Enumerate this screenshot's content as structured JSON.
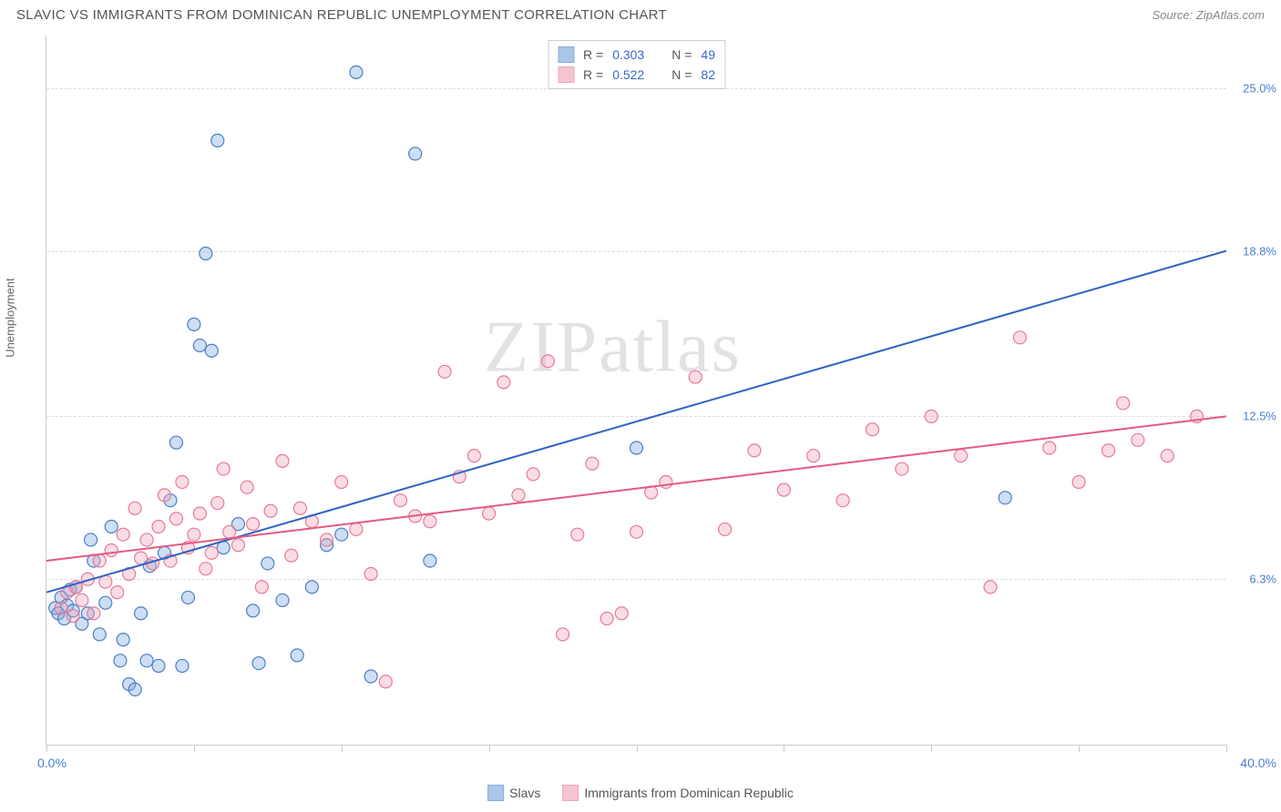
{
  "title": "SLAVIC VS IMMIGRANTS FROM DOMINICAN REPUBLIC UNEMPLOYMENT CORRELATION CHART",
  "source": "Source: ZipAtlas.com",
  "watermark": "ZIPatlas",
  "chart": {
    "type": "scatter",
    "ylabel": "Unemployment",
    "xlim": [
      0,
      40
    ],
    "ylim": [
      0,
      27
    ],
    "grid_y_values": [
      6.3,
      12.5,
      18.8,
      25.0
    ],
    "ytick_labels": [
      "6.3%",
      "12.5%",
      "18.8%",
      "25.0%"
    ],
    "xtick_values": [
      0,
      5,
      10,
      15,
      20,
      25,
      30,
      35,
      40
    ],
    "xaxis_min_label": "0.0%",
    "xaxis_max_label": "40.0%",
    "background_color": "#ffffff",
    "grid_color": "#dddddd",
    "axis_color": "#cccccc",
    "marker_radius": 7,
    "series": [
      {
        "name_key": "slavs",
        "label": "Slavs",
        "color": "#7fa9e0",
        "stroke": "#4b7fc7",
        "line_color": "#2e62c4",
        "R": "0.303",
        "N": "49",
        "regression": {
          "x1": 0,
          "y1": 5.8,
          "x2": 40,
          "y2": 18.8
        },
        "points": [
          [
            0.3,
            5.2
          ],
          [
            0.4,
            5.0
          ],
          [
            0.5,
            5.6
          ],
          [
            0.6,
            4.8
          ],
          [
            0.7,
            5.3
          ],
          [
            0.8,
            5.9
          ],
          [
            0.9,
            5.1
          ],
          [
            1.0,
            6.0
          ],
          [
            1.2,
            4.6
          ],
          [
            1.4,
            5.0
          ],
          [
            1.5,
            7.8
          ],
          [
            1.6,
            7.0
          ],
          [
            1.8,
            4.2
          ],
          [
            2.0,
            5.4
          ],
          [
            2.2,
            8.3
          ],
          [
            2.5,
            3.2
          ],
          [
            2.6,
            4.0
          ],
          [
            2.8,
            2.3
          ],
          [
            3.0,
            2.1
          ],
          [
            3.2,
            5.0
          ],
          [
            3.4,
            3.2
          ],
          [
            3.5,
            6.8
          ],
          [
            3.8,
            3.0
          ],
          [
            4.0,
            7.3
          ],
          [
            4.2,
            9.3
          ],
          [
            4.4,
            11.5
          ],
          [
            4.6,
            3.0
          ],
          [
            4.8,
            5.6
          ],
          [
            5.0,
            16.0
          ],
          [
            5.2,
            15.2
          ],
          [
            5.4,
            18.7
          ],
          [
            5.6,
            15.0
          ],
          [
            5.8,
            23.0
          ],
          [
            6.0,
            7.5
          ],
          [
            6.5,
            8.4
          ],
          [
            7.0,
            5.1
          ],
          [
            7.2,
            3.1
          ],
          [
            7.5,
            6.9
          ],
          [
            8.0,
            5.5
          ],
          [
            8.5,
            3.4
          ],
          [
            9.0,
            6.0
          ],
          [
            9.5,
            7.6
          ],
          [
            10.0,
            8.0
          ],
          [
            10.5,
            25.6
          ],
          [
            11.0,
            2.6
          ],
          [
            12.5,
            22.5
          ],
          [
            13.0,
            7.0
          ],
          [
            20.0,
            11.3
          ],
          [
            32.5,
            9.4
          ]
        ]
      },
      {
        "name_key": "dominican",
        "label": "Immigrants from Dominican Republic",
        "color": "#f2a6b8",
        "stroke": "#e87a97",
        "line_color": "#e25a82",
        "R": "0.522",
        "N": "82",
        "regression": {
          "x1": 0,
          "y1": 7.0,
          "x2": 40,
          "y2": 12.5
        },
        "points": [
          [
            0.5,
            5.2
          ],
          [
            0.7,
            5.8
          ],
          [
            0.9,
            4.9
          ],
          [
            1.0,
            6.0
          ],
          [
            1.2,
            5.5
          ],
          [
            1.4,
            6.3
          ],
          [
            1.6,
            5.0
          ],
          [
            1.8,
            7.0
          ],
          [
            2.0,
            6.2
          ],
          [
            2.2,
            7.4
          ],
          [
            2.4,
            5.8
          ],
          [
            2.6,
            8.0
          ],
          [
            2.8,
            6.5
          ],
          [
            3.0,
            9.0
          ],
          [
            3.2,
            7.1
          ],
          [
            3.4,
            7.8
          ],
          [
            3.6,
            6.9
          ],
          [
            3.8,
            8.3
          ],
          [
            4.0,
            9.5
          ],
          [
            4.2,
            7.0
          ],
          [
            4.4,
            8.6
          ],
          [
            4.6,
            10.0
          ],
          [
            4.8,
            7.5
          ],
          [
            5.0,
            8.0
          ],
          [
            5.2,
            8.8
          ],
          [
            5.4,
            6.7
          ],
          [
            5.6,
            7.3
          ],
          [
            5.8,
            9.2
          ],
          [
            6.0,
            10.5
          ],
          [
            6.2,
            8.1
          ],
          [
            6.5,
            7.6
          ],
          [
            6.8,
            9.8
          ],
          [
            7.0,
            8.4
          ],
          [
            7.3,
            6.0
          ],
          [
            7.6,
            8.9
          ],
          [
            8.0,
            10.8
          ],
          [
            8.3,
            7.2
          ],
          [
            8.6,
            9.0
          ],
          [
            9.0,
            8.5
          ],
          [
            9.5,
            7.8
          ],
          [
            10.0,
            10.0
          ],
          [
            10.5,
            8.2
          ],
          [
            11.0,
            6.5
          ],
          [
            11.5,
            2.4
          ],
          [
            12.0,
            9.3
          ],
          [
            12.5,
            8.7
          ],
          [
            13.0,
            8.5
          ],
          [
            13.5,
            14.2
          ],
          [
            14.0,
            10.2
          ],
          [
            14.5,
            11.0
          ],
          [
            15.0,
            8.8
          ],
          [
            15.5,
            13.8
          ],
          [
            16.0,
            9.5
          ],
          [
            16.5,
            10.3
          ],
          [
            17.0,
            14.6
          ],
          [
            17.5,
            4.2
          ],
          [
            18.0,
            8.0
          ],
          [
            18.5,
            10.7
          ],
          [
            19.0,
            4.8
          ],
          [
            19.5,
            5.0
          ],
          [
            20.0,
            8.1
          ],
          [
            20.5,
            9.6
          ],
          [
            21.0,
            10.0
          ],
          [
            22.0,
            14.0
          ],
          [
            23.0,
            8.2
          ],
          [
            24.0,
            11.2
          ],
          [
            25.0,
            9.7
          ],
          [
            26.0,
            11.0
          ],
          [
            27.0,
            9.3
          ],
          [
            28.0,
            12.0
          ],
          [
            29.0,
            10.5
          ],
          [
            30.0,
            12.5
          ],
          [
            31.0,
            11.0
          ],
          [
            32.0,
            6.0
          ],
          [
            33.0,
            15.5
          ],
          [
            34.0,
            11.3
          ],
          [
            35.0,
            10.0
          ],
          [
            36.0,
            11.2
          ],
          [
            37.0,
            11.6
          ],
          [
            38.0,
            11.0
          ],
          [
            39.0,
            12.5
          ],
          [
            36.5,
            13.0
          ]
        ]
      }
    ]
  },
  "legend_top": {
    "r_label": "R =",
    "n_label": "N ="
  },
  "bottom_legend": {
    "items": [
      {
        "label": "Slavs",
        "color": "#7fa9e0",
        "stroke": "#4b7fc7"
      },
      {
        "label": "Immigrants from Dominican Republic",
        "color": "#f2a6b8",
        "stroke": "#e87a97"
      }
    ]
  }
}
